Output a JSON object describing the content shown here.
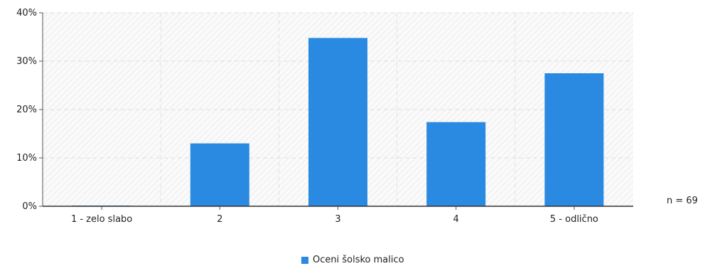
{
  "chart_data": {
    "type": "bar",
    "categories": [
      "1 - zelo slabo",
      "2",
      "3",
      "4",
      "5 - odlično"
    ],
    "series": [
      {
        "name": "Oceni šolsko malico",
        "values": [
          0,
          13.0,
          34.8,
          17.4,
          27.5
        ],
        "color": "#2a8ae2"
      }
    ],
    "ylim": [
      0,
      40
    ],
    "yticks": [
      "0%",
      "10%",
      "20%",
      "30%",
      "40%"
    ],
    "ytick_values": [
      0,
      10,
      20,
      30,
      40
    ],
    "grid": true,
    "legend_position": "bottom-center"
  },
  "n_label": "n = 69"
}
